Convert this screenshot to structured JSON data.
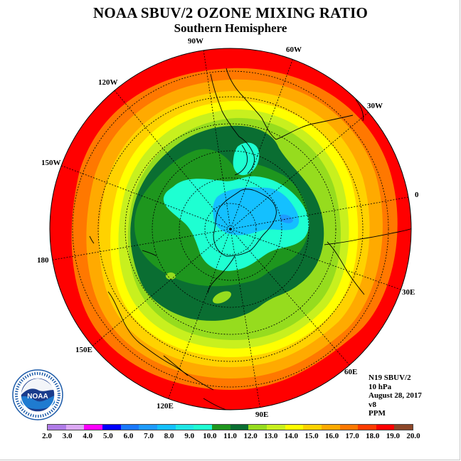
{
  "title": "NOAA SBUV/2 OZONE MIXING RATIO",
  "subtitle": "Southern Hemisphere",
  "longitude_labels": [
    "90W",
    "60W",
    "30W",
    "0",
    "30E",
    "60E",
    "90E",
    "120E",
    "150E",
    "180",
    "150W",
    "120W"
  ],
  "info": {
    "instrument": "N19 SBUV/2",
    "level": "10 hPa",
    "date": "August 28, 2017",
    "version": "v8",
    "units": "PPM"
  },
  "colorbar": {
    "ticks": [
      "2.0",
      "3.0",
      "4.0",
      "5.0",
      "6.0",
      "7.0",
      "8.0",
      "9.0",
      "10.0",
      "11.0",
      "12.0",
      "13.0",
      "14.0",
      "15.0",
      "16.0",
      "17.0",
      "18.0",
      "19.0",
      "20.0"
    ],
    "colors": [
      "#b07ce8",
      "#dca8f5",
      "#ff00ff",
      "#0000ff",
      "#1a78ff",
      "#1e9bff",
      "#14c0ff",
      "#1ee6e6",
      "#1effd2",
      "#1e961e",
      "#0a6e32",
      "#96dc1e",
      "#c8f01e",
      "#ffff00",
      "#ffd200",
      "#ffaa00",
      "#ff7800",
      "#ff3c00",
      "#ff0000",
      "#8c4628"
    ]
  },
  "logo": {
    "text": "NOAA",
    "ring_text": "NATIONAL OCEANIC AND ATMOSPHERIC ADMINISTRATION · U.S. DEPARTMENT OF COMMERCE"
  }
}
